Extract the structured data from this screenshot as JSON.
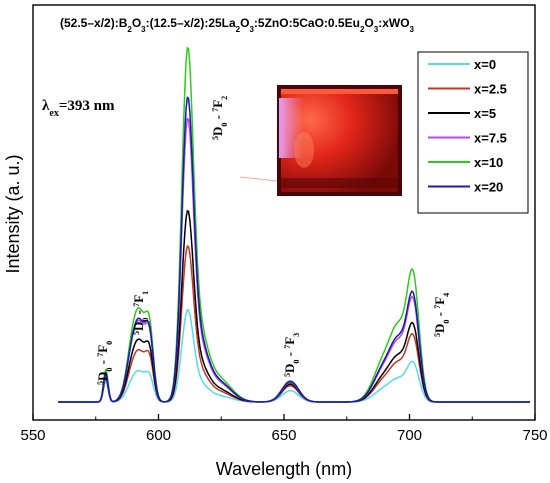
{
  "chart_data": {
    "type": "line",
    "title_parts": [
      {
        "t": "(52.5–x/2):B"
      },
      {
        "t": "2",
        "sub": true
      },
      {
        "t": "O"
      },
      {
        "t": "3",
        "sub": true
      },
      {
        "t": ":(12.5–x/2):25La"
      },
      {
        "t": "2",
        "sub": true
      },
      {
        "t": "O"
      },
      {
        "t": "3",
        "sub": true
      },
      {
        "t": ":5ZnO:5CaO:0.5Eu"
      },
      {
        "t": "2",
        "sub": true
      },
      {
        "t": "O"
      },
      {
        "t": "3",
        "sub": true
      },
      {
        "t": ":xWO"
      },
      {
        "t": "3",
        "sub": true
      }
    ],
    "excitation": {
      "symbol": "λ",
      "sub": "ex",
      "text": "=393 nm"
    },
    "xlabel": "Wavelength (nm)",
    "ylabel": "Intensity (a. u.)",
    "xlim": [
      550,
      750
    ],
    "ylim": [
      0,
      1.05
    ],
    "xticks": [
      "550",
      "600",
      "650",
      "700",
      "750"
    ],
    "legend_position": "top-right",
    "peak_labels": [
      {
        "d_sub": "0",
        "f_sub": "0",
        "x": 579
      },
      {
        "d_sub": "0",
        "f_sub": "1",
        "x": 591
      },
      {
        "d_sub": "0",
        "f_sub": "2",
        "x": 612
      },
      {
        "d_sub": "0",
        "f_sub": "3",
        "x": 653
      },
      {
        "d_sub": "0",
        "f_sub": "4",
        "x": 702
      }
    ],
    "peak_label_prefix": {
      "d": "5",
      "d_letter": "D",
      "f": "7",
      "f_letter": "F",
      "sep": " - "
    },
    "series": [
      {
        "name": "x=0",
        "color": "#55dbf0",
        "peaks": {
          "f0": 0.065,
          "f1a": 0.075,
          "f1b": 0.068,
          "f2": 0.26,
          "f3": 0.035,
          "f4": 0.11
        }
      },
      {
        "name": "x=2.5",
        "color": "#c0392b",
        "peaks": {
          "f0": 0.075,
          "f1a": 0.125,
          "f1b": 0.115,
          "f2": 0.44,
          "f3": 0.05,
          "f4": 0.185
        }
      },
      {
        "name": "x=5",
        "color": "#000000",
        "peaks": {
          "f0": 0.08,
          "f1a": 0.15,
          "f1b": 0.135,
          "f2": 0.54,
          "f3": 0.055,
          "f4": 0.215
        }
      },
      {
        "name": "x=7.5",
        "color": "#b84be0",
        "peaks": {
          "f0": 0.085,
          "f1a": 0.195,
          "f1b": 0.175,
          "f2": 0.8,
          "f3": 0.06,
          "f4": 0.285
        }
      },
      {
        "name": "x=10",
        "color": "#2ecc1a",
        "peaks": {
          "f0": 0.1,
          "f1a": 0.225,
          "f1b": 0.2,
          "f2": 1.0,
          "f3": 0.065,
          "f4": 0.36
        }
      },
      {
        "name": "x=20",
        "color": "#1a1ab0",
        "peaks": {
          "f0": 0.09,
          "f1a": 0.2,
          "f1b": 0.18,
          "f2": 0.86,
          "f3": 0.063,
          "f4": 0.3
        }
      }
    ]
  }
}
